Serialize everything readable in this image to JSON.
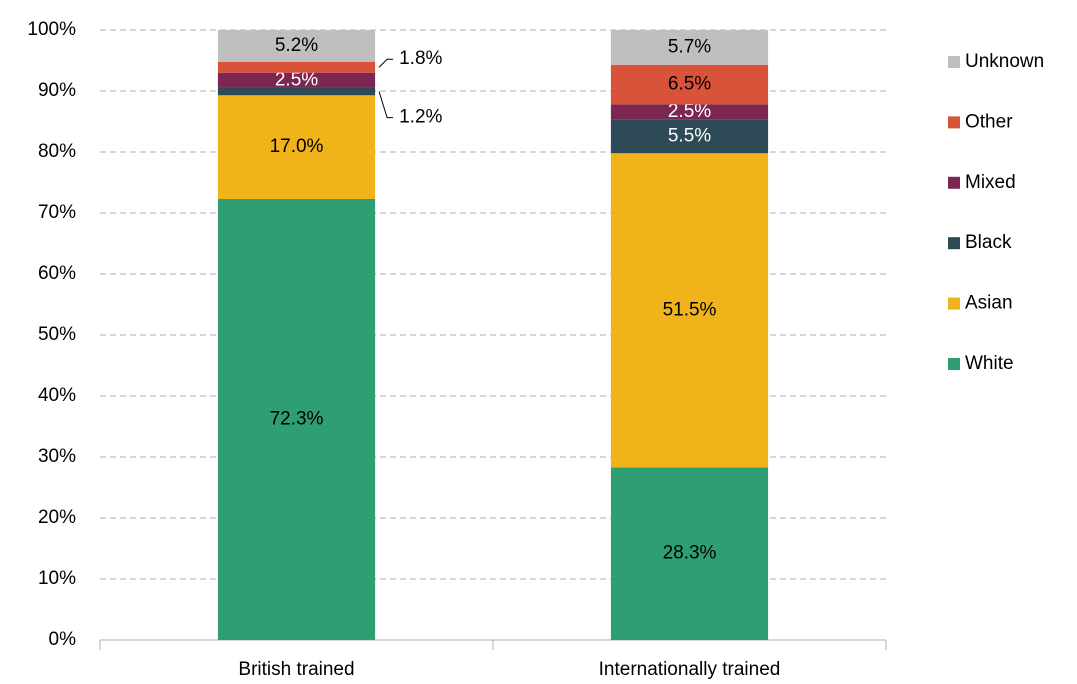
{
  "chart_data": {
    "type": "stacked_bar",
    "categories": [
      "British trained",
      "Internationally trained"
    ],
    "series": [
      {
        "name": "White",
        "color": "#2e9e73",
        "values": [
          72.3,
          28.3
        ],
        "value_labels": [
          "72.3%",
          "28.3%"
        ]
      },
      {
        "name": "Asian",
        "color": "#f0b41a",
        "values": [
          17.0,
          51.5
        ],
        "value_labels": [
          "17.0%",
          "51.5%"
        ]
      },
      {
        "name": "Black",
        "color": "#2d4a56",
        "values": [
          1.2,
          5.5
        ],
        "value_labels": [
          "1.2%",
          "5.5%"
        ]
      },
      {
        "name": "Mixed",
        "color": "#7b2752",
        "values": [
          2.5,
          2.5
        ],
        "value_labels": [
          "2.5%",
          "2.5%"
        ]
      },
      {
        "name": "Other",
        "color": "#d9533a",
        "values": [
          1.8,
          6.5
        ],
        "value_labels": [
          "1.8%",
          "6.5%"
        ]
      },
      {
        "name": "Unknown",
        "color": "#bfbfbf",
        "values": [
          5.2,
          5.7
        ],
        "value_labels": [
          "5.2%",
          "5.7%"
        ]
      }
    ],
    "ylim": [
      0,
      100
    ],
    "yticks": [
      {
        "value": 0,
        "label": "0%"
      },
      {
        "value": 10,
        "label": "10%"
      },
      {
        "value": 20,
        "label": "20%"
      },
      {
        "value": 30,
        "label": "30%"
      },
      {
        "value": 40,
        "label": "40%"
      },
      {
        "value": 50,
        "label": "50%"
      },
      {
        "value": 60,
        "label": "60%"
      },
      {
        "value": 70,
        "label": "70%"
      },
      {
        "value": 80,
        "label": "80%"
      },
      {
        "value": 90,
        "label": "90%"
      },
      {
        "value": 100,
        "label": "100%"
      }
    ],
    "grid": true,
    "legend": "right"
  }
}
